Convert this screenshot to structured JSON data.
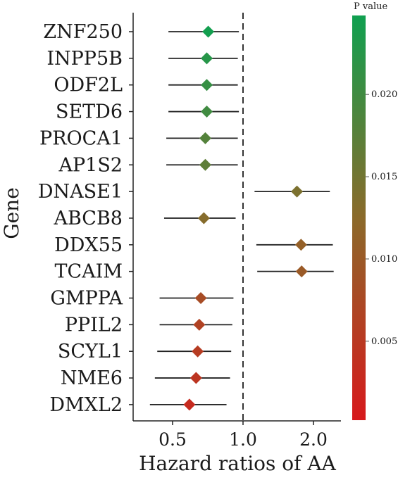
{
  "chart_data": {
    "type": "forest",
    "xlabel": "Hazard ratios of AA",
    "ylabel": "Gene",
    "x_scale": "log",
    "x_ticks": [
      0.5,
      1.0,
      2.0
    ],
    "x_tick_labels": [
      "0.5",
      "1.0",
      "2.0"
    ],
    "reference_line": 1.0,
    "color_legend": {
      "title": "P value",
      "range": [
        0.0002,
        0.0248
      ],
      "ticks": [
        0.005,
        0.01,
        0.015,
        0.02
      ],
      "tick_labels": [
        "0.005",
        "0.010",
        "0.015",
        "0.020"
      ],
      "low_color": "#d7191c",
      "mid_color": "#8b6a2a",
      "high_color": "#10a050"
    },
    "rows": [
      {
        "gene": "ZNF250",
        "hr": 0.71,
        "lower": 0.48,
        "upper": 0.96,
        "p": 0.0245
      },
      {
        "gene": "INPP5B",
        "hr": 0.7,
        "lower": 0.48,
        "upper": 0.95,
        "p": 0.0225
      },
      {
        "gene": "ODF2L",
        "hr": 0.7,
        "lower": 0.48,
        "upper": 0.95,
        "p": 0.021
      },
      {
        "gene": "SETD6",
        "hr": 0.7,
        "lower": 0.48,
        "upper": 0.96,
        "p": 0.02
      },
      {
        "gene": "PROCA1",
        "hr": 0.69,
        "lower": 0.47,
        "upper": 0.95,
        "p": 0.018
      },
      {
        "gene": "AP1S2",
        "hr": 0.69,
        "lower": 0.47,
        "upper": 0.95,
        "p": 0.017
      },
      {
        "gene": "DNASE1",
        "hr": 1.7,
        "lower": 1.12,
        "upper": 2.35,
        "p": 0.014
      },
      {
        "gene": "ABCB8",
        "hr": 0.68,
        "lower": 0.46,
        "upper": 0.93,
        "p": 0.013
      },
      {
        "gene": "DDX55",
        "hr": 1.77,
        "lower": 1.14,
        "upper": 2.42,
        "p": 0.011
      },
      {
        "gene": "TCAIM",
        "hr": 1.78,
        "lower": 1.15,
        "upper": 2.44,
        "p": 0.01
      },
      {
        "gene": "GMPPA",
        "hr": 0.66,
        "lower": 0.44,
        "upper": 0.91,
        "p": 0.008
      },
      {
        "gene": "PPIL2",
        "hr": 0.65,
        "lower": 0.44,
        "upper": 0.9,
        "p": 0.0065
      },
      {
        "gene": "SCYL1",
        "hr": 0.64,
        "lower": 0.43,
        "upper": 0.89,
        "p": 0.0055
      },
      {
        "gene": "NME6",
        "hr": 0.63,
        "lower": 0.42,
        "upper": 0.88,
        "p": 0.0045
      },
      {
        "gene": "DMXL2",
        "hr": 0.59,
        "lower": 0.4,
        "upper": 0.85,
        "p": 0.003
      }
    ]
  }
}
